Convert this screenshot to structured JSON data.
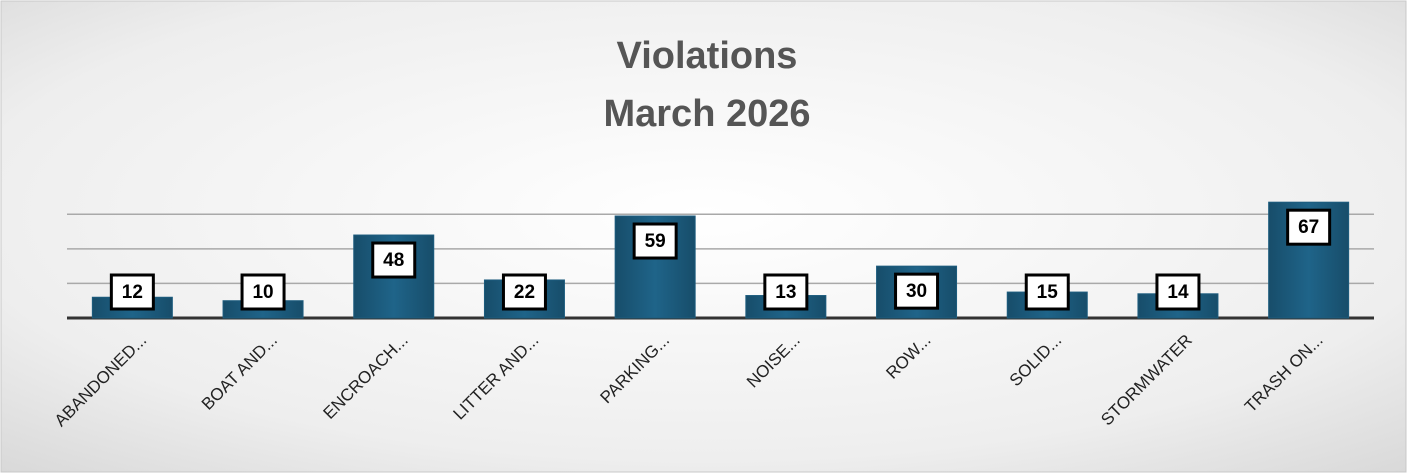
{
  "chart_data": {
    "type": "bar",
    "title": "Violations",
    "subtitle": "March 2026",
    "categories": [
      "ABANDONED...",
      "BOAT AND...",
      "ENCROACH...",
      "LITTER AND...",
      "PARKING...",
      "NOISE...",
      "ROW...",
      "SOLID...",
      "STORMWATER",
      "TRASH ON..."
    ],
    "values": [
      12,
      10,
      48,
      22,
      59,
      13,
      30,
      15,
      14,
      67
    ],
    "color": "#1d5c7e",
    "ylim": [
      0,
      70
    ],
    "yticks": [
      0,
      20,
      40,
      60
    ],
    "grid": true
  }
}
